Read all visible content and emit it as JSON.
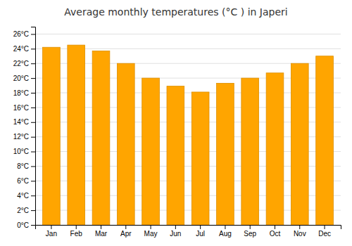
{
  "chart_data": {
    "type": "bar",
    "title": "Average monthly temperatures (°C ) in Japeri",
    "categories": [
      "Jan",
      "Feb",
      "Mar",
      "Apr",
      "May",
      "Jun",
      "Jul",
      "Aug",
      "Sep",
      "Oct",
      "Nov",
      "Dec"
    ],
    "values": [
      24.2,
      24.5,
      23.7,
      22.0,
      20.0,
      18.9,
      18.1,
      19.3,
      20.0,
      20.7,
      22.0,
      23.0
    ],
    "color": "#FFA500",
    "ylim": [
      0,
      27
    ],
    "yticks": [
      {
        "value": 0,
        "label": "0°C"
      },
      {
        "value": 2,
        "label": "2°C"
      },
      {
        "value": 4,
        "label": "4°C"
      },
      {
        "value": 6,
        "label": "6°C"
      },
      {
        "value": 8,
        "label": "8°C"
      },
      {
        "value": 10,
        "label": "10°C"
      },
      {
        "value": 12,
        "label": "12°C"
      },
      {
        "value": 14,
        "label": "14°C"
      },
      {
        "value": 16,
        "label": "16°C"
      },
      {
        "value": 18,
        "label": "18°C"
      },
      {
        "value": 20,
        "label": "20°C"
      },
      {
        "value": 22,
        "label": "22°C"
      },
      {
        "value": 24,
        "label": "24°C"
      },
      {
        "value": 26,
        "label": "26°C"
      }
    ],
    "grid": true
  }
}
